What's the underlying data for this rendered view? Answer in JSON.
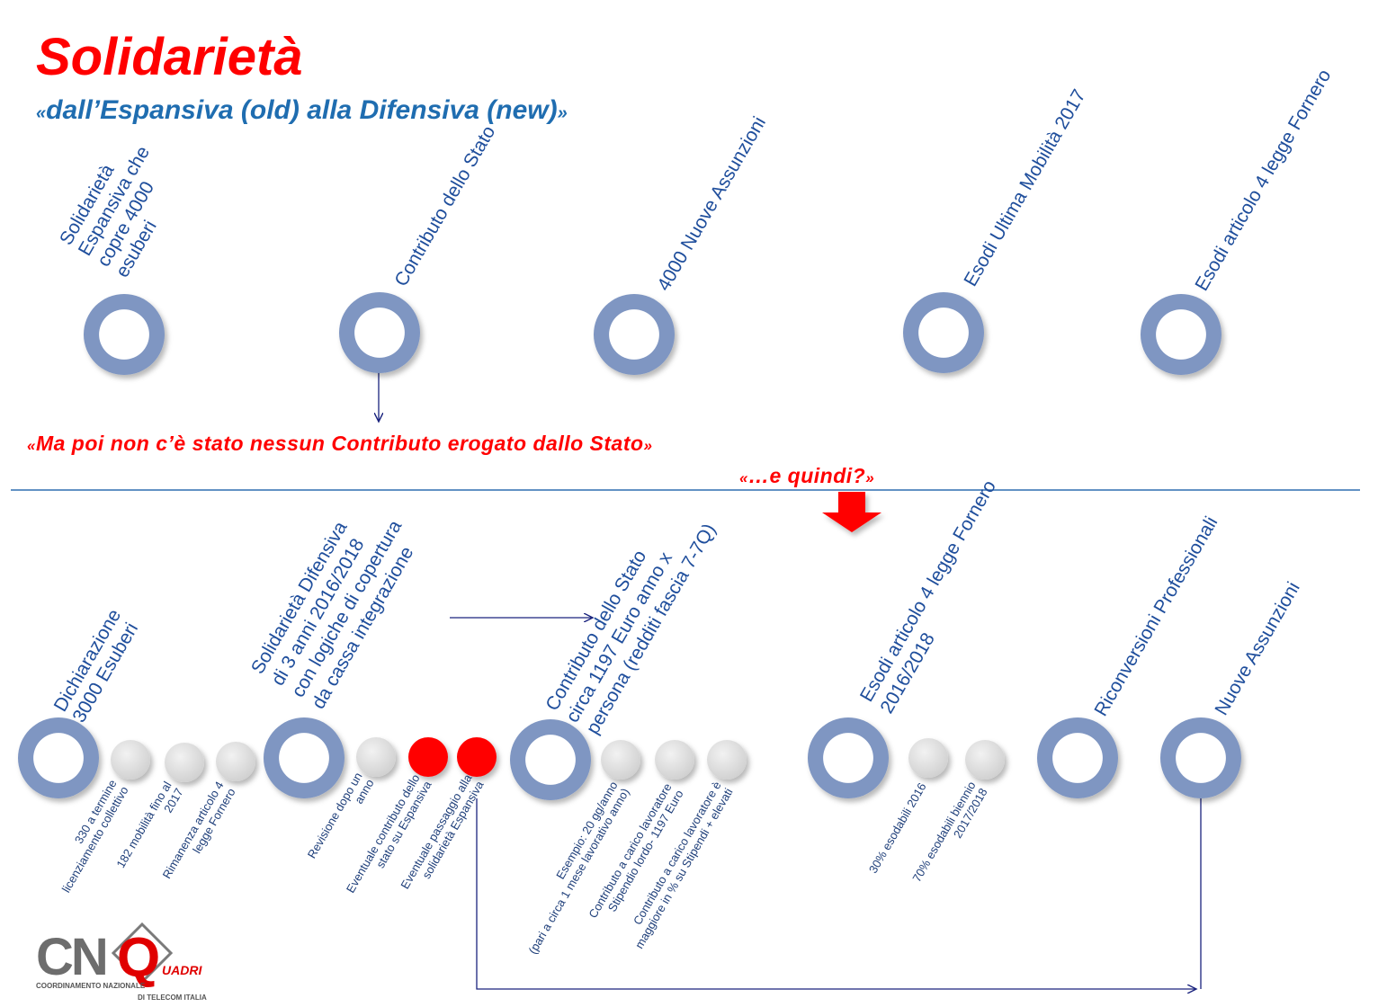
{
  "header": {
    "title": "Solidarietà",
    "subtitle_open": "«",
    "subtitle": "dall’Espansiva (old) alla Difensiva (new)",
    "subtitle_close": "»"
  },
  "colors": {
    "title": "#ff0000",
    "subtitle": "#1f6db0",
    "ring": "#7f96c2",
    "ring_inner": "#ffffff",
    "gray_dot": "#d9d9d9",
    "red_dot": "#ff0000",
    "label": "#1f4e9c",
    "arrow": "#1a237e",
    "divider": "#2e6fb0",
    "big_arrow": "#ff0000"
  },
  "top_timeline": {
    "milestones": [
      {
        "lines": [
          "Solidarietà",
          "Espansiva che",
          "copre 4000",
          "esuberi"
        ]
      },
      {
        "lines": [
          "Contributo dello Stato"
        ]
      },
      {
        "lines": [
          "4000 Nuove Assunzioni"
        ]
      },
      {
        "lines": [
          "Esodi  Ultima Mobilità 2017"
        ]
      },
      {
        "lines": [
          "Esodi articolo 4 legge Fornero"
        ]
      }
    ]
  },
  "quotes": {
    "main_open": "«",
    "main": "Ma poi non c’è stato nessun Contributo erogato dallo Stato",
    "main_close": "»",
    "followup_open": "«",
    "followup": "…e quindi?",
    "followup_close": "»"
  },
  "bottom_timeline": {
    "milestones": [
      {
        "lines": [
          "Dichiarazione",
          "3000 Esuberi"
        ]
      },
      {
        "lines": [
          "Solidarietà Difensiva",
          "di 3 anni 2016/2018",
          "con logiche di copertura",
          "da cassa integrazione"
        ]
      },
      {
        "lines": [
          "Contributo dello Stato",
          "circa 1197 Euro anno x",
          "persona (redditi fascia 7-7Q)"
        ]
      },
      {
        "lines": [
          "Esodi  articolo 4 legge Fornero",
          "2016/2018"
        ]
      },
      {
        "lines": [
          "Riconversioni Professionali"
        ]
      },
      {
        "lines": [
          "Nuove Assunzioni"
        ]
      }
    ],
    "sub_notes": [
      {
        "lines": [
          "330 a termine",
          "licenziamento collettivo"
        ]
      },
      {
        "lines": [
          "182 mobilità fino al",
          "2017"
        ]
      },
      {
        "lines": [
          "Rimanenza articolo 4",
          "legge Fornero"
        ]
      },
      {
        "lines": [
          "Revisione dopo un",
          "anno"
        ]
      },
      {
        "lines": [
          "Eventuale contributo dello",
          "stato su Espansiva"
        ]
      },
      {
        "lines": [
          "Eventuale passaggio alla",
          "solidarietà Espansiva"
        ]
      },
      {
        "lines": [
          "Esempio: 20 gg/anno",
          "(pari a circa 1 mese lavorativo anno)"
        ]
      },
      {
        "lines": [
          "Contributo a carico lavoratore",
          "Stipendio lordo- 1197 Euro"
        ]
      },
      {
        "lines": [
          "Contributo a carico lavoratore è",
          "maggiore in % su Stipendi + elevati"
        ]
      },
      {
        "lines": [
          "30% esodabili 2016"
        ]
      },
      {
        "lines": [
          "70% esodabili biennio",
          "2017/2018"
        ]
      }
    ]
  },
  "logo": {
    "letters": "CN",
    "q_letter": "Q",
    "q_word": "UADRI",
    "line1": "COORDINAMENTO NAZIONALE",
    "line2": "DI TELECOM ITALIA"
  }
}
